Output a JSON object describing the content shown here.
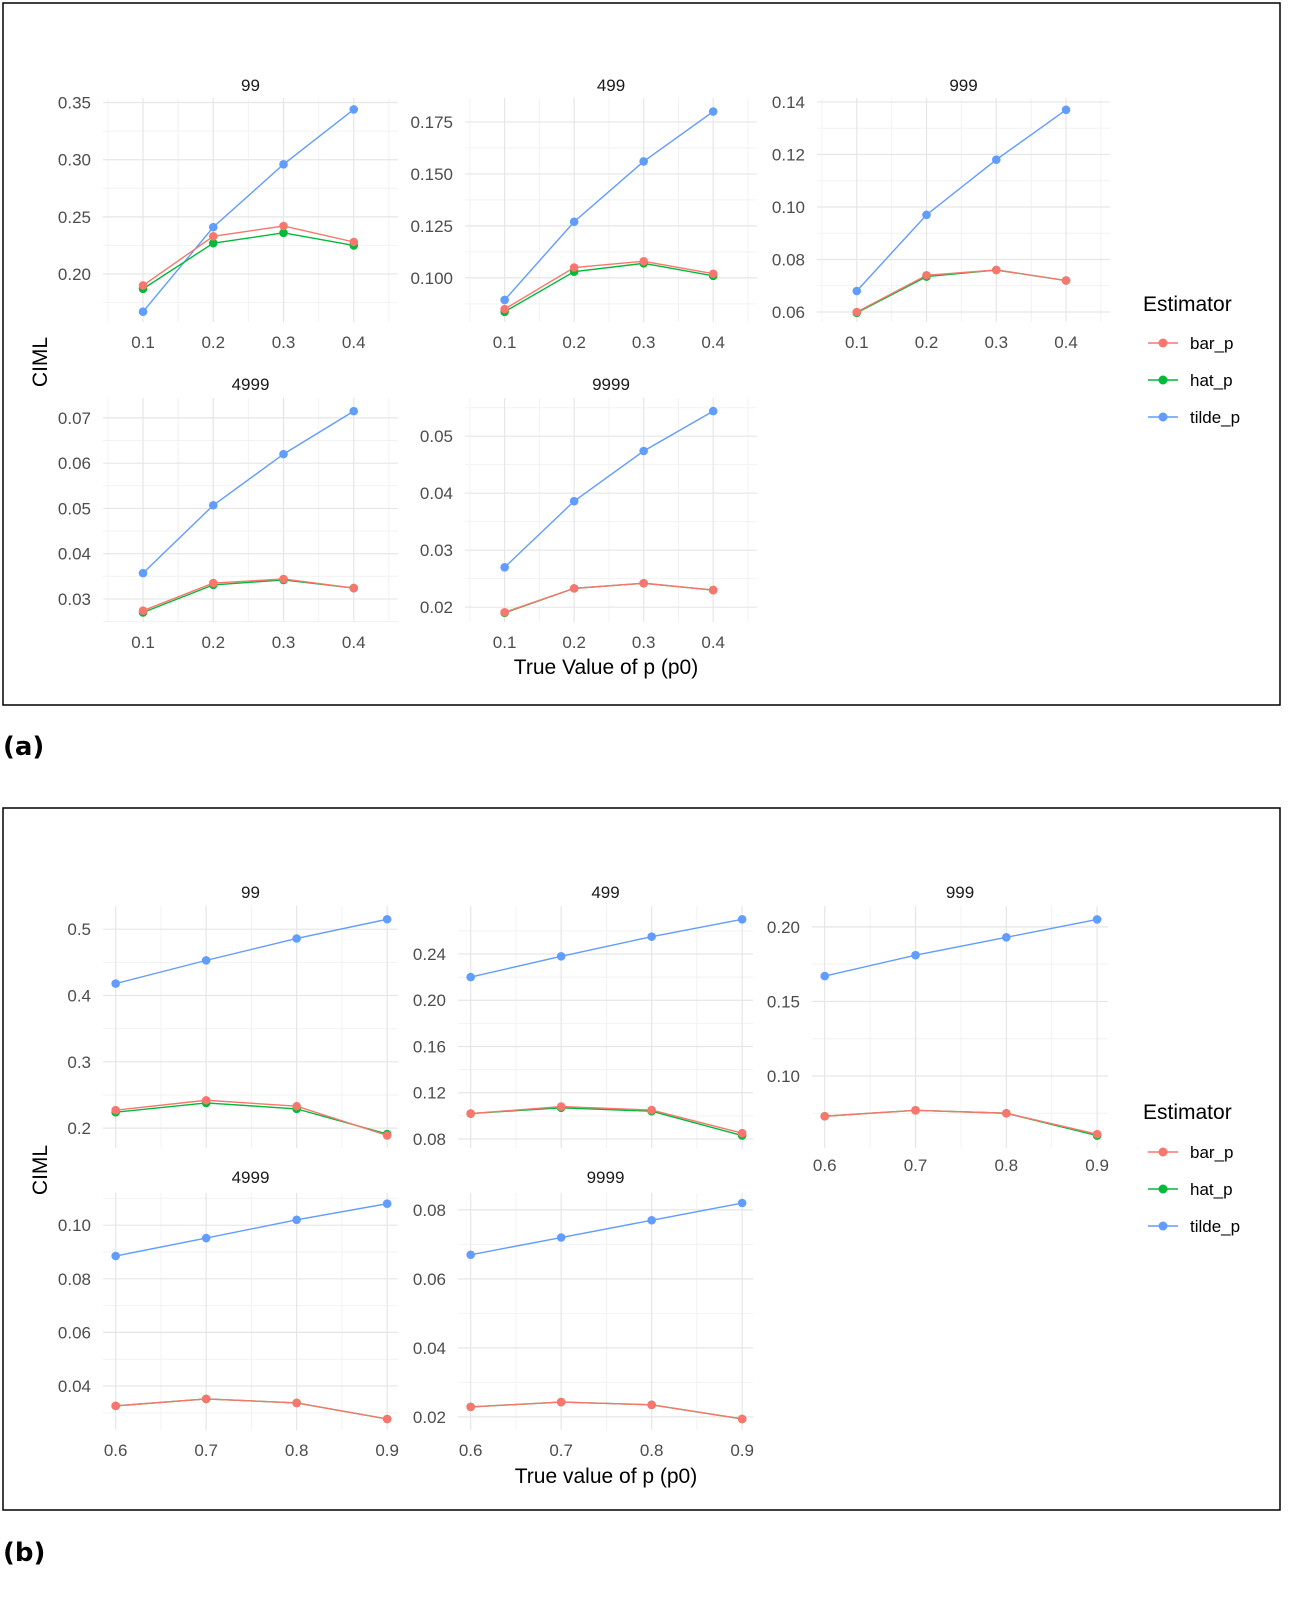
{
  "figures": [
    {
      "label": "(a)",
      "xlabel": "True Value of p (p0)",
      "ylabel": "CIML",
      "legend_title": "Estimator",
      "legend": [
        "bar_p",
        "hat_p",
        "tilde_p"
      ]
    },
    {
      "label": "(b)",
      "xlabel": "True value of p (p0)",
      "ylabel": "CIML",
      "legend_title": "Estimator",
      "legend": [
        "bar_p",
        "hat_p",
        "tilde_p"
      ]
    }
  ],
  "colors": {
    "bar_p": "#F8766D",
    "hat_p": "#00BA38",
    "tilde_p": "#619CFF"
  },
  "chart_data": [
    {
      "figure": "(a)",
      "type": "line",
      "title": "99",
      "x": [
        0.1,
        0.2,
        0.3,
        0.4
      ],
      "xticks": [
        "0.1",
        "0.2",
        "0.3",
        "0.4"
      ],
      "xlim": [
        0.043,
        0.463
      ],
      "yticks": [
        "0.20",
        "0.25",
        "0.30",
        "0.35"
      ],
      "ylim": [
        0.158,
        0.354
      ],
      "grid": true,
      "series": [
        {
          "name": "bar_p",
          "values": [
            0.19,
            0.233,
            0.242,
            0.228
          ]
        },
        {
          "name": "hat_p",
          "values": [
            0.187,
            0.227,
            0.236,
            0.225
          ]
        },
        {
          "name": "tilde_p",
          "values": [
            0.167,
            0.241,
            0.296,
            0.344
          ]
        }
      ]
    },
    {
      "figure": "(a)",
      "type": "line",
      "title": "499",
      "x": [
        0.1,
        0.2,
        0.3,
        0.4
      ],
      "xticks": [
        "0.1",
        "0.2",
        "0.3",
        "0.4"
      ],
      "xlim": [
        0.043,
        0.463
      ],
      "yticks": [
        "0.100",
        "0.125",
        "0.150",
        "0.175"
      ],
      "ylim": [
        0.0788,
        0.1865
      ],
      "grid": true,
      "series": [
        {
          "name": "bar_p",
          "values": [
            0.085,
            0.105,
            0.108,
            0.102
          ]
        },
        {
          "name": "hat_p",
          "values": [
            0.0837,
            0.103,
            0.107,
            0.101
          ]
        },
        {
          "name": "tilde_p",
          "values": [
            0.0894,
            0.127,
            0.156,
            0.18
          ]
        }
      ]
    },
    {
      "figure": "(a)",
      "type": "line",
      "title": "999",
      "x": [
        0.1,
        0.2,
        0.3,
        0.4
      ],
      "xticks": [
        "0.1",
        "0.2",
        "0.3",
        "0.4"
      ],
      "xlim": [
        0.043,
        0.463
      ],
      "yticks": [
        "0.06",
        "0.08",
        "0.10",
        "0.12",
        "0.14"
      ],
      "ylim": [
        0.0562,
        0.1415
      ],
      "grid": true,
      "series": [
        {
          "name": "bar_p",
          "values": [
            0.06,
            0.074,
            0.076,
            0.072
          ]
        },
        {
          "name": "hat_p",
          "values": [
            0.0597,
            0.0735,
            0.076,
            0.072
          ]
        },
        {
          "name": "tilde_p",
          "values": [
            0.068,
            0.097,
            0.118,
            0.137
          ]
        }
      ]
    },
    {
      "figure": "(a)",
      "type": "line",
      "title": "4999",
      "x": [
        0.1,
        0.2,
        0.3,
        0.4
      ],
      "xticks": [
        "0.1",
        "0.2",
        "0.3",
        "0.4"
      ],
      "xlim": [
        0.043,
        0.463
      ],
      "yticks": [
        "0.03",
        "0.04",
        "0.05",
        "0.06",
        "0.07"
      ],
      "ylim": [
        0.0249,
        0.0744
      ],
      "grid": true,
      "series": [
        {
          "name": "bar_p",
          "values": [
            0.0274,
            0.0335,
            0.0344,
            0.0324
          ]
        },
        {
          "name": "hat_p",
          "values": [
            0.027,
            0.0331,
            0.0342,
            0.0324
          ]
        },
        {
          "name": "tilde_p",
          "values": [
            0.0357,
            0.0507,
            0.062,
            0.0715
          ]
        }
      ]
    },
    {
      "figure": "(a)",
      "type": "line",
      "title": "9999",
      "x": [
        0.1,
        0.2,
        0.3,
        0.4
      ],
      "xticks": [
        "0.1",
        "0.2",
        "0.3",
        "0.4"
      ],
      "xlim": [
        0.043,
        0.463
      ],
      "yticks": [
        "0.02",
        "0.03",
        "0.04",
        "0.05"
      ],
      "ylim": [
        0.0174,
        0.0567
      ],
      "grid": true,
      "series": [
        {
          "name": "bar_p",
          "values": [
            0.0191,
            0.0233,
            0.0242,
            0.023
          ]
        },
        {
          "name": "hat_p",
          "values": [
            0.019,
            0.0233,
            0.0242,
            0.023
          ]
        },
        {
          "name": "tilde_p",
          "values": [
            0.027,
            0.0386,
            0.0474,
            0.0544
          ]
        }
      ]
    },
    {
      "figure": "(b)",
      "type": "line",
      "title": "99",
      "x": [
        0.6,
        0.7,
        0.8,
        0.9
      ],
      "xticks": [
        "0.6",
        "0.7",
        "0.8",
        "0.9"
      ],
      "xlim": [
        0.586,
        0.912
      ],
      "yticks": [
        "0.2",
        "0.3",
        "0.4",
        "0.5"
      ],
      "ylim": [
        0.17,
        0.535
      ],
      "grid": true,
      "series": [
        {
          "name": "bar_p",
          "values": [
            0.227,
            0.242,
            0.233,
            0.189
          ]
        },
        {
          "name": "hat_p",
          "values": [
            0.224,
            0.238,
            0.229,
            0.191
          ]
        },
        {
          "name": "tilde_p",
          "values": [
            0.418,
            0.453,
            0.486,
            0.515
          ]
        }
      ]
    },
    {
      "figure": "(b)",
      "type": "line",
      "title": "499",
      "x": [
        0.6,
        0.7,
        0.8,
        0.9
      ],
      "xticks": [
        "0.6",
        "0.7",
        "0.8",
        "0.9"
      ],
      "xlim": [
        0.586,
        0.912
      ],
      "yticks": [
        "0.08",
        "0.12",
        "0.16",
        "0.20",
        "0.24"
      ],
      "ylim": [
        0.0722,
        0.2815
      ],
      "grid": true,
      "series": [
        {
          "name": "bar_p",
          "values": [
            0.102,
            0.108,
            0.105,
            0.085
          ]
        },
        {
          "name": "hat_p",
          "values": [
            0.102,
            0.107,
            0.104,
            0.083
          ]
        },
        {
          "name": "tilde_p",
          "values": [
            0.22,
            0.238,
            0.255,
            0.27
          ]
        }
      ]
    },
    {
      "figure": "(b)",
      "type": "line",
      "title": "999",
      "x": [
        0.6,
        0.7,
        0.8,
        0.9
      ],
      "xticks": [
        "0.6",
        "0.7",
        "0.8",
        "0.9"
      ],
      "xlim": [
        0.586,
        0.912
      ],
      "yticks": [
        "0.10",
        "0.15",
        "0.20"
      ],
      "ylim": [
        0.0517,
        0.214
      ],
      "grid": true,
      "series": [
        {
          "name": "bar_p",
          "values": [
            0.073,
            0.077,
            0.075,
            0.061
          ]
        },
        {
          "name": "hat_p",
          "values": [
            0.073,
            0.077,
            0.075,
            0.06
          ]
        },
        {
          "name": "tilde_p",
          "values": [
            0.167,
            0.181,
            0.193,
            0.205
          ]
        }
      ]
    },
    {
      "figure": "(b)",
      "type": "line",
      "title": "4999",
      "x": [
        0.6,
        0.7,
        0.8,
        0.9
      ],
      "xticks": [
        "0.6",
        "0.7",
        "0.8",
        "0.9"
      ],
      "xlim": [
        0.586,
        0.912
      ],
      "yticks": [
        "0.04",
        "0.06",
        "0.08",
        "0.10"
      ],
      "ylim": [
        0.0236,
        0.112
      ],
      "grid": true,
      "series": [
        {
          "name": "bar_p",
          "values": [
            0.0326,
            0.0352,
            0.0337,
            0.0277
          ]
        },
        {
          "name": "hat_p",
          "values": [
            0.0326,
            0.0352,
            0.0337,
            0.0277
          ]
        },
        {
          "name": "tilde_p",
          "values": [
            0.0885,
            0.0952,
            0.102,
            0.108
          ]
        }
      ]
    },
    {
      "figure": "(b)",
      "type": "line",
      "title": "9999",
      "x": [
        0.6,
        0.7,
        0.8,
        0.9
      ],
      "xticks": [
        "0.6",
        "0.7",
        "0.8",
        "0.9"
      ],
      "xlim": [
        0.586,
        0.912
      ],
      "yticks": [
        "0.02",
        "0.04",
        "0.06",
        "0.08"
      ],
      "ylim": [
        0.0162,
        0.0849
      ],
      "grid": true,
      "series": [
        {
          "name": "bar_p",
          "values": [
            0.0229,
            0.0243,
            0.0235,
            0.0194
          ]
        },
        {
          "name": "hat_p",
          "values": [
            0.0229,
            0.0243,
            0.0235,
            0.0194
          ]
        },
        {
          "name": "tilde_p",
          "values": [
            0.067,
            0.072,
            0.077,
            0.082
          ]
        }
      ]
    }
  ]
}
